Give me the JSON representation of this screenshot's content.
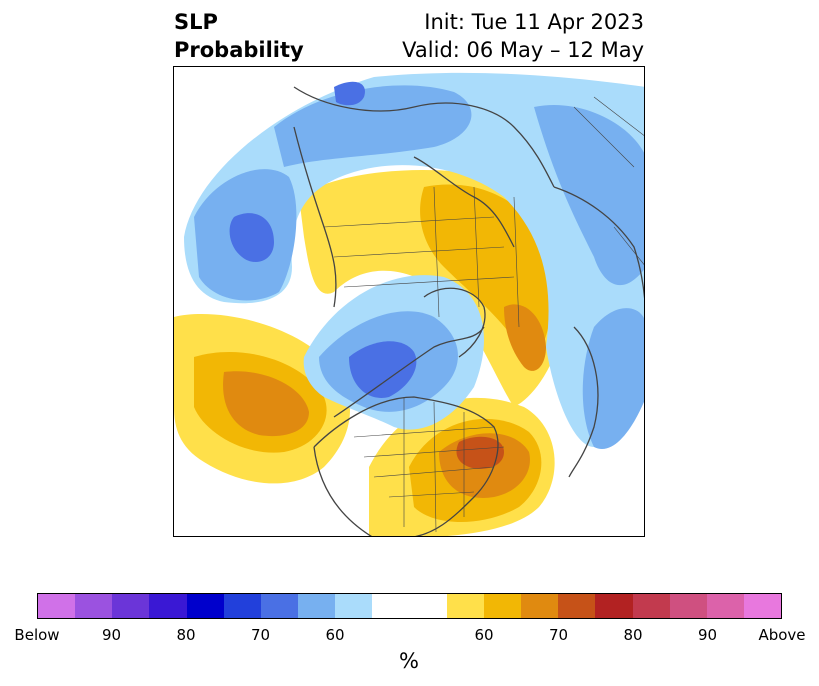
{
  "title": {
    "line1": "SLP",
    "line2": "Probability",
    "init": "Init: Tue 11 Apr 2023",
    "valid": "Valid: 06 May – 12 May"
  },
  "map": {
    "projection": "north-polar-stereographic",
    "features": [
      "coastlines",
      "country-borders",
      "us-state-borders"
    ]
  },
  "colorbar": {
    "unit_label": "%",
    "colors": [
      "#d071e8",
      "#9b52e0",
      "#6b35d8",
      "#3a18d4",
      "#0000cc",
      "#2240db",
      "#4a70e4",
      "#77b0f0",
      "#aadcfb",
      "#ffffff",
      "#ffffff",
      "#ffe04a",
      "#f2b705",
      "#e08a10",
      "#c65218",
      "#b22222",
      "#c23a4e",
      "#cf5080",
      "#dc62aa",
      "#e878de"
    ],
    "tick_labels": [
      "Below",
      "90",
      "80",
      "70",
      "60",
      "60",
      "70",
      "80",
      "90",
      "Above"
    ]
  }
}
